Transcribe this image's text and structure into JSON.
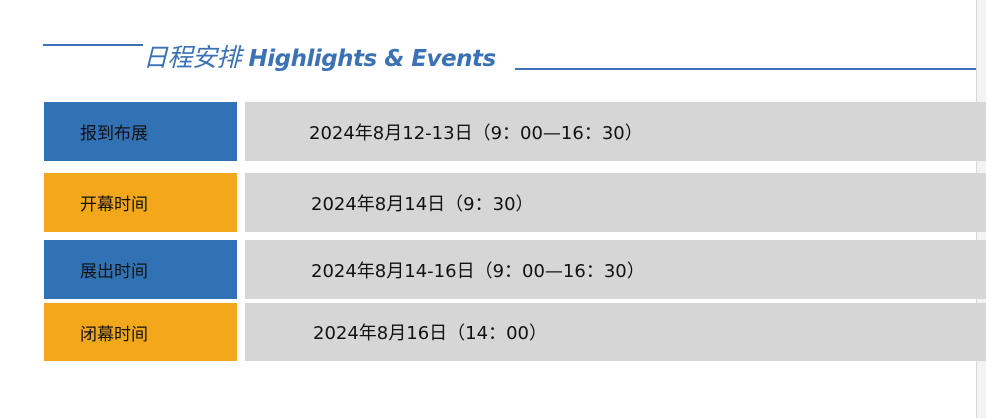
{
  "header": {
    "title_cn": "日程安排",
    "title_en": "Highlights & Events"
  },
  "colors": {
    "blue": "#3172b5",
    "orange": "#f2a81a",
    "gray": "#d5d6d5"
  },
  "rows": [
    {
      "label": "报到布展",
      "value": "2024年8月12-13日（9：00—16：30）",
      "color": "#3172b5"
    },
    {
      "label": "开幕时间",
      "value": "2024年8月14日（9：30）",
      "color": "#f2a81a"
    },
    {
      "label": "展出时间",
      "value": "2024年8月14-16日（9：00—16：30）",
      "color": "#3172b5"
    },
    {
      "label": "闭幕时间",
      "value": "2024年8月16日（14：00）",
      "color": "#f2a81a"
    }
  ]
}
